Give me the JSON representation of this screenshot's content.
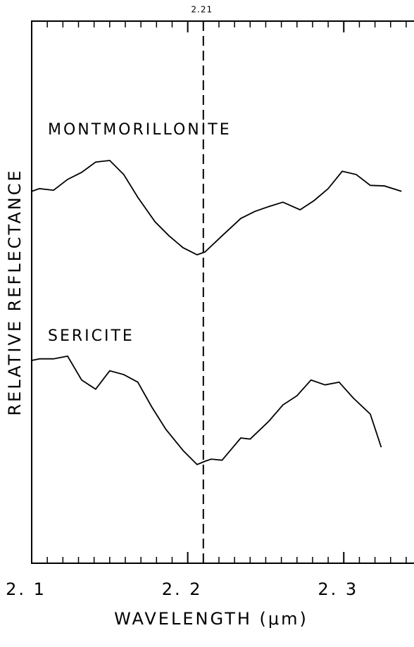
{
  "chart_data": {
    "type": "line",
    "xlabel": "WAVELENGTH (μm)",
    "ylabel": "RELATIVE REFLECTANCE",
    "xlim": [
      2.1,
      2.345
    ],
    "ylim": [
      0,
      100
    ],
    "xticks": [
      {
        "value": 2.1,
        "label": "2. 1"
      },
      {
        "value": 2.2,
        "label": "2. 2"
      },
      {
        "value": 2.3,
        "label": "2. 3"
      }
    ],
    "xticks_minor": [
      2.11,
      2.12,
      2.13,
      2.14,
      2.15,
      2.16,
      2.17,
      2.18,
      2.19,
      2.21,
      2.22,
      2.23,
      2.24,
      2.25,
      2.26,
      2.27,
      2.28,
      2.29,
      2.31,
      2.32,
      2.33,
      2.34
    ],
    "vline": {
      "x": 2.21,
      "label": "2.21",
      "style": "dashed"
    },
    "series": [
      {
        "name": "MONTMORILLONITE",
        "color": "#000000",
        "x": [
          2.1,
          2.105,
          2.114,
          2.123,
          2.132,
          2.141,
          2.15,
          2.159,
          2.168,
          2.179,
          2.188,
          2.197,
          2.206,
          2.211,
          2.222,
          2.234,
          2.243,
          2.252,
          2.261,
          2.272,
          2.281,
          2.29,
          2.299,
          2.308,
          2.317,
          2.326,
          2.337
        ],
        "values": [
          68.6,
          69.1,
          68.8,
          70.8,
          72.1,
          74.0,
          74.3,
          71.7,
          67.5,
          63.0,
          60.4,
          58.2,
          56.9,
          57.4,
          60.4,
          63.6,
          64.9,
          65.8,
          66.6,
          65.2,
          66.9,
          69.1,
          72.3,
          71.7,
          69.7,
          69.6,
          68.6
        ]
      },
      {
        "name": "SERICITE",
        "color": "#000000",
        "x": [
          2.1,
          2.105,
          2.114,
          2.123,
          2.132,
          2.141,
          2.15,
          2.159,
          2.168,
          2.177,
          2.186,
          2.197,
          2.206,
          2.211,
          2.215,
          2.222,
          2.234,
          2.24,
          2.252,
          2.261,
          2.27,
          2.279,
          2.288,
          2.297,
          2.306,
          2.317,
          2.324
        ],
        "values": [
          37.4,
          37.7,
          37.7,
          38.2,
          33.8,
          32.1,
          35.5,
          34.8,
          33.4,
          28.8,
          24.7,
          20.8,
          18.2,
          18.8,
          19.2,
          19.0,
          23.1,
          22.9,
          26.2,
          29.2,
          30.9,
          33.8,
          32.9,
          33.4,
          30.5,
          27.5,
          21.4
        ]
      }
    ]
  }
}
